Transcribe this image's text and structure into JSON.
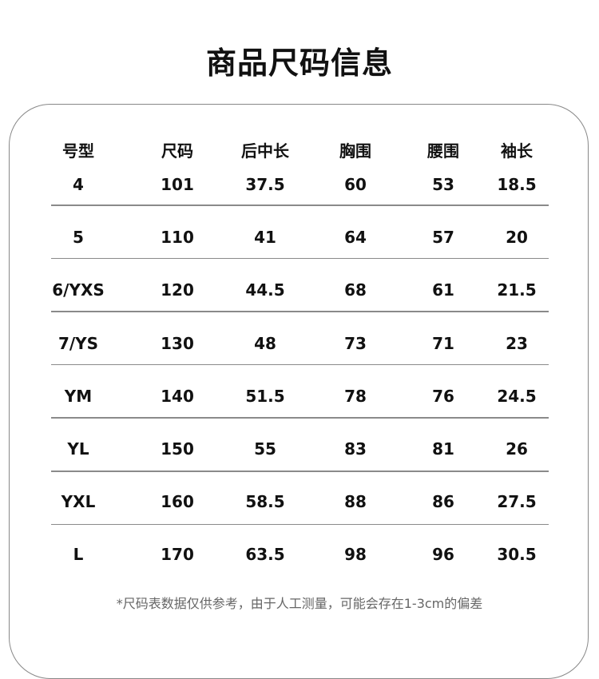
{
  "title": "商品尺码信息",
  "table": {
    "headers": [
      "号型",
      "尺码",
      "后中长",
      "胸围",
      "腰围",
      "袖长"
    ],
    "rows": [
      [
        "4",
        "101",
        "37.5",
        "60",
        "53",
        "18.5"
      ],
      [
        "5",
        "110",
        "41",
        "64",
        "57",
        "20"
      ],
      [
        "6/YXS",
        "120",
        "44.5",
        "68",
        "61",
        "21.5"
      ],
      [
        "7/YS",
        "130",
        "48",
        "73",
        "71",
        "23"
      ],
      [
        "YM",
        "140",
        "51.5",
        "78",
        "76",
        "24.5"
      ],
      [
        "YL",
        "150",
        "55",
        "83",
        "81",
        "26"
      ],
      [
        "YXL",
        "160",
        "58.5",
        "88",
        "86",
        "27.5"
      ],
      [
        "L",
        "170",
        "63.5",
        "98",
        "96",
        "30.5"
      ]
    ]
  },
  "note": "*尺码表数据仅供参考，由于人工测量，可能会存在1-3cm的偏差"
}
